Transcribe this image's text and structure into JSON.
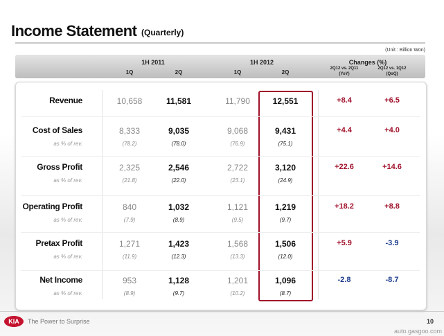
{
  "header": {
    "title": "Income Statement",
    "subtitle": "(Quarterly)",
    "unit": "(Unit : Billion Won)"
  },
  "table": {
    "groups": [
      "1H 2011",
      "1H 2012",
      "Changes (%)"
    ],
    "columns": [
      "1Q",
      "2Q",
      "1Q",
      "2Q"
    ],
    "changes": [
      {
        "label": "2Q12 vs. 2Q11",
        "note": "(YoY)"
      },
      {
        "label": "2Q12 vs. 1Q12",
        "note": "(QoQ)"
      }
    ],
    "rows": [
      {
        "label": "Revenue",
        "values": [
          "10,658",
          "11,581",
          "11,790",
          "12,551",
          "+8.4",
          "+6.5"
        ]
      },
      {
        "label": "Cost of Sales",
        "values": [
          "8,333",
          "9,035",
          "9,068",
          "9,431",
          "+4.4",
          "+4.0"
        ],
        "sub_label": "as % of rev.",
        "sub_values": [
          "(78.2)",
          "(78.0)",
          "(76.9)",
          "(75.1)"
        ]
      },
      {
        "label": "Gross Profit",
        "values": [
          "2,325",
          "2,546",
          "2,722",
          "3,120",
          "+22.6",
          "+14.6"
        ],
        "sub_label": "as % of rev.",
        "sub_values": [
          "(21.8)",
          "(22.0)",
          "(23.1)",
          "(24.9)"
        ]
      },
      {
        "label": "Operating Profit",
        "values": [
          "840",
          "1,032",
          "1,121",
          "1,219",
          "+18.2",
          "+8.8"
        ],
        "sub_label": "as % of rev.",
        "sub_values": [
          "(7.9)",
          "(8.9)",
          "(9.5)",
          "(9.7)"
        ]
      },
      {
        "label": "Pretax Profit",
        "values": [
          "1,271",
          "1,423",
          "1,568",
          "1,506",
          "+5.9",
          "-3.9"
        ],
        "sub_label": "as % of rev.",
        "sub_values": [
          "(11.9)",
          "(12.3)",
          "(13.3)",
          "(12.0)"
        ]
      },
      {
        "label": "Net Income",
        "values": [
          "953",
          "1,128",
          "1,201",
          "1,096",
          "-2.8",
          "-8.7"
        ],
        "sub_label": "as % of rev.",
        "sub_values": [
          "(8.9)",
          "(9.7)",
          "(10.2)",
          "(8.7)"
        ]
      }
    ]
  },
  "footer": {
    "logo": "KIA",
    "slogan": "The Power to Surprise",
    "page": "10",
    "watermark": "auto.gasgoo.com"
  }
}
